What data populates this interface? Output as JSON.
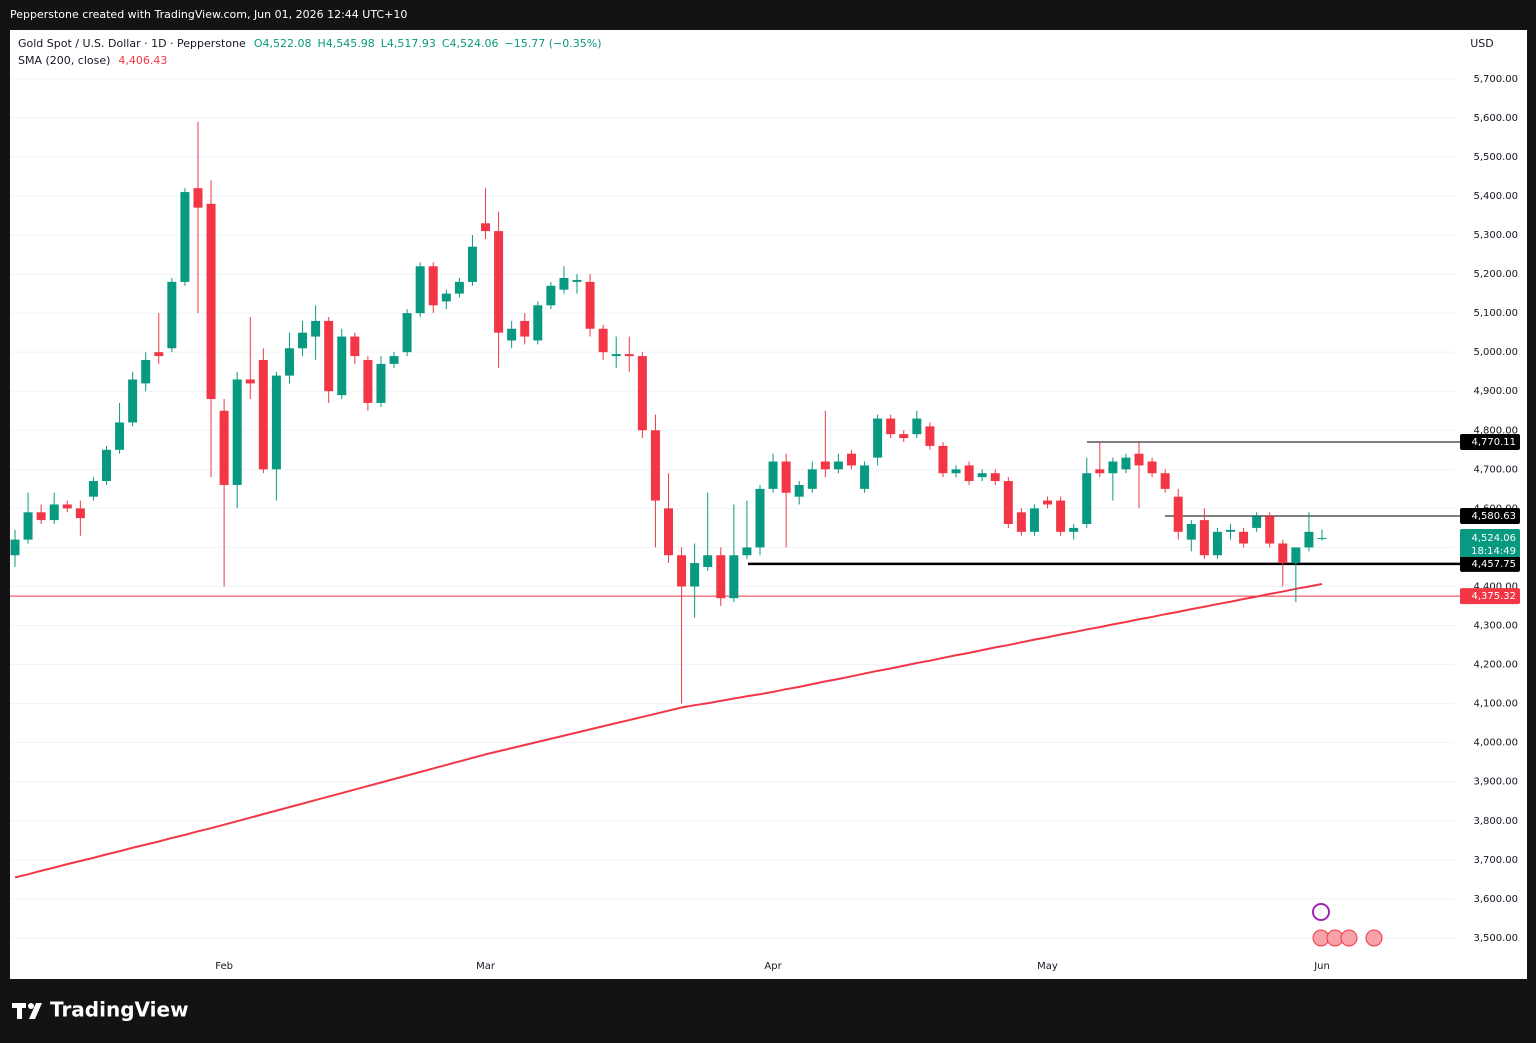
{
  "header": {
    "caption": "Pepperstone created with TradingView.com, Jun 01, 2026 12:44 UTC+10"
  },
  "footer": {
    "brand": "TradingView"
  },
  "chart_data": {
    "type": "candlestick",
    "legend": {
      "symbol": "Gold Spot / U.S. Dollar · 1D · Pepperstone",
      "open": "O4,522.08",
      "high": "H4,545.98",
      "low": "L4,517.93",
      "close": "C4,524.06",
      "change": "−15.77 (−0.35%)",
      "indicator": "SMA (200, close)",
      "indicator_value": "4,406.43"
    },
    "currency": "USD",
    "up_color": "#089981",
    "down_color": "#f23645",
    "categories": [
      null,
      null,
      null,
      null,
      null,
      null,
      null,
      null,
      null,
      null,
      null,
      null,
      null,
      null,
      null,
      null,
      "Feb",
      null,
      null,
      null,
      null,
      null,
      null,
      null,
      null,
      null,
      null,
      null,
      null,
      null,
      null,
      null,
      null,
      null,
      null,
      null,
      "Mar",
      null,
      null,
      null,
      null,
      null,
      null,
      null,
      null,
      null,
      null,
      null,
      null,
      null,
      null,
      null,
      null,
      null,
      null,
      null,
      null,
      null,
      "Apr",
      null,
      null,
      null,
      null,
      null,
      null,
      null,
      null,
      null,
      null,
      null,
      null,
      null,
      null,
      null,
      null,
      null,
      null,
      null,
      null,
      "May",
      null,
      null,
      null,
      null,
      null,
      null,
      null,
      null,
      null,
      null,
      null,
      null,
      null,
      null,
      null,
      null,
      null,
      null,
      null,
      null,
      "Jun"
    ],
    "open": [
      4480,
      4520,
      4590,
      4570,
      4610,
      4600,
      4630,
      4670,
      4750,
      4820,
      4920,
      5000,
      5010,
      5180,
      5420,
      5380,
      4850,
      4660,
      4930,
      4980,
      4700,
      4940,
      5010,
      5040,
      5080,
      4890,
      5040,
      4980,
      4870,
      4970,
      5000,
      5100,
      5220,
      5130,
      5150,
      5180,
      5330,
      5310,
      5030,
      5080,
      5030,
      5120,
      5160,
      5180,
      5180,
      5060,
      4990,
      4995,
      4990,
      4800,
      4600,
      4480,
      4400,
      4450,
      4480,
      4370,
      4480,
      4500,
      4650,
      4720,
      4630,
      4650,
      4720,
      4700,
      4740,
      4650,
      4730,
      4830,
      4790,
      4790,
      4810,
      4760,
      4690,
      4710,
      4680,
      4690,
      4670,
      4590,
      4540,
      4620,
      4620,
      4540,
      4560,
      4700,
      4690,
      4700,
      4740,
      4720,
      4690,
      4630,
      4520,
      4570,
      4480,
      4540,
      4540,
      4550,
      4580,
      4510,
      4460,
      4500,
      4522.08
    ],
    "high": [
      4545,
      4640,
      4610,
      4640,
      4620,
      4620,
      4680,
      4760,
      4870,
      4950,
      5000,
      5100,
      5190,
      5420,
      5590,
      5440,
      4880,
      4950,
      5090,
      5010,
      4950,
      5050,
      5080,
      5120,
      5090,
      5060,
      5050,
      4990,
      4990,
      5000,
      5110,
      5230,
      5230,
      5160,
      5190,
      5300,
      5420,
      5360,
      5080,
      5100,
      5130,
      5180,
      5220,
      5200,
      5200,
      5070,
      5040,
      5040,
      5000,
      4840,
      4690,
      4500,
      4510,
      4640,
      4500,
      4610,
      4620,
      4660,
      4740,
      4740,
      4670,
      4720,
      4850,
      4740,
      4750,
      4720,
      4840,
      4840,
      4800,
      4850,
      4820,
      4770,
      4710,
      4720,
      4700,
      4700,
      4680,
      4600,
      4610,
      4630,
      4630,
      4560,
      4730,
      4770,
      4730,
      4740,
      4770,
      4730,
      4700,
      4650,
      4570,
      4600,
      4550,
      4560,
      4550,
      4590,
      4590,
      4520,
      4500,
      4590,
      4545.98
    ],
    "low": [
      4450,
      4510,
      4560,
      4560,
      4590,
      4530,
      4620,
      4660,
      4740,
      4810,
      4900,
      4970,
      5000,
      5170,
      5100,
      4680,
      4400,
      4600,
      4880,
      4690,
      4620,
      4920,
      4990,
      4980,
      4870,
      4880,
      4970,
      4850,
      4860,
      4960,
      4990,
      5090,
      5100,
      5110,
      5140,
      5170,
      5290,
      4960,
      5010,
      5020,
      5020,
      5110,
      5150,
      5150,
      5040,
      4980,
      4960,
      4950,
      4780,
      4500,
      4460,
      4100,
      4320,
      4440,
      4350,
      4360,
      4470,
      4480,
      4640,
      4500,
      4610,
      4640,
      4680,
      4690,
      4700,
      4640,
      4710,
      4780,
      4770,
      4780,
      4750,
      4680,
      4680,
      4660,
      4670,
      4660,
      4550,
      4530,
      4530,
      4600,
      4530,
      4520,
      4550,
      4680,
      4620,
      4690,
      4600,
      4680,
      4640,
      4520,
      4490,
      4470,
      4470,
      4520,
      4500,
      4540,
      4500,
      4400,
      4360,
      4490,
      4517.93
    ],
    "close": [
      4520,
      4590,
      4570,
      4610,
      4600,
      4575,
      4670,
      4750,
      4820,
      4930,
      4980,
      4990,
      5180,
      5410,
      5370,
      4880,
      4660,
      4930,
      4920,
      4700,
      4940,
      5010,
      5050,
      5080,
      4900,
      5040,
      4990,
      4870,
      4970,
      4990,
      5100,
      5220,
      5120,
      5150,
      5180,
      5270,
      5310,
      5050,
      5060,
      5040,
      5120,
      5170,
      5190,
      5185,
      5060,
      5000,
      4995,
      4990,
      4800,
      4620,
      4480,
      4400,
      4460,
      4480,
      4370,
      4480,
      4500,
      4650,
      4720,
      4640,
      4660,
      4700,
      4700,
      4720,
      4710,
      4710,
      4830,
      4790,
      4780,
      4830,
      4760,
      4690,
      4700,
      4670,
      4690,
      4670,
      4560,
      4540,
      4600,
      4610,
      4540,
      4550,
      4690,
      4690,
      4720,
      4730,
      4710,
      4690,
      4650,
      4540,
      4560,
      4480,
      4540,
      4545,
      4510,
      4580,
      4510,
      4460,
      4500,
      4540,
      4524.06
    ],
    "sma": {
      "name": "SMA (200, close)",
      "color": "#f23645",
      "values": [
        3655,
        3663,
        3672,
        3680,
        3689,
        3697,
        3705,
        3714,
        3722,
        3731,
        3739,
        3747,
        3756,
        3764,
        3773,
        3781,
        3790,
        3799,
        3808,
        3817,
        3826,
        3835,
        3844,
        3853,
        3862,
        3871,
        3880,
        3889,
        3898,
        3907,
        3916,
        3925,
        3934,
        3943,
        3952,
        3961,
        3970,
        3978,
        3986,
        3994,
        4002,
        4010,
        4018,
        4026,
        4034,
        4042,
        4050,
        4058,
        4066,
        4074,
        4082,
        4090,
        4096,
        4101,
        4107,
        4113,
        4119,
        4124,
        4130,
        4137,
        4143,
        4150,
        4157,
        4163,
        4170,
        4177,
        4184,
        4190,
        4197,
        4204,
        4210,
        4217,
        4224,
        4230,
        4237,
        4244,
        4250,
        4257,
        4264,
        4270,
        4277,
        4283,
        4290,
        4296,
        4303,
        4309,
        4316,
        4322,
        4329,
        4335,
        4342,
        4348,
        4355,
        4361,
        4368,
        4374,
        4381,
        4387,
        4394,
        4400,
        4406.43
      ]
    },
    "price_lines": [
      {
        "value": 4770.11,
        "label": "4,770.11",
        "color": "#000000"
      },
      {
        "value": 4580.63,
        "label": "4,580.63",
        "color": "#000000"
      },
      {
        "value": 4457.75,
        "label": "4,457.75",
        "color": "#000000"
      },
      {
        "value": 4375.32,
        "label": "4,375.32",
        "color": "#f23645"
      }
    ],
    "last_price": {
      "value": 4524.06,
      "label": "4,524.06",
      "countdown": "18:14:49",
      "color": "#089981"
    },
    "ylim": [
      3464,
      5825
    ],
    "yticks": [
      {
        "value": 3500,
        "label": "3,500.00"
      },
      {
        "value": 3600,
        "label": "3,600.00"
      },
      {
        "value": 3700,
        "label": "3,700.00"
      },
      {
        "value": 3800,
        "label": "3,800.00"
      },
      {
        "value": 3900,
        "label": "3,900.00"
      },
      {
        "value": 4000,
        "label": "4,000.00"
      },
      {
        "value": 4100,
        "label": "4,100.00"
      },
      {
        "value": 4200,
        "label": "4,200.00"
      },
      {
        "value": 4300,
        "label": "4,300.00"
      },
      {
        "value": 4400,
        "label": "4,400.00"
      },
      {
        "value": 4500,
        "label": "4,500.00"
      },
      {
        "value": 4600,
        "label": "4,600.00"
      },
      {
        "value": 4700,
        "label": "4,700.00"
      },
      {
        "value": 4800,
        "label": "4,800.00"
      },
      {
        "value": 4900,
        "label": "4,900.00"
      },
      {
        "value": 5000,
        "label": "5,000.00"
      },
      {
        "value": 5100,
        "label": "5,100.00"
      },
      {
        "value": 5200,
        "label": "5,200.00"
      },
      {
        "value": 5300,
        "label": "5,300.00"
      },
      {
        "value": 5400,
        "label": "5,400.00"
      },
      {
        "value": 5500,
        "label": "5,500.00"
      },
      {
        "value": 5600,
        "label": "5,600.00"
      },
      {
        "value": 5700,
        "label": "5,700.00"
      }
    ],
    "grid": true
  }
}
